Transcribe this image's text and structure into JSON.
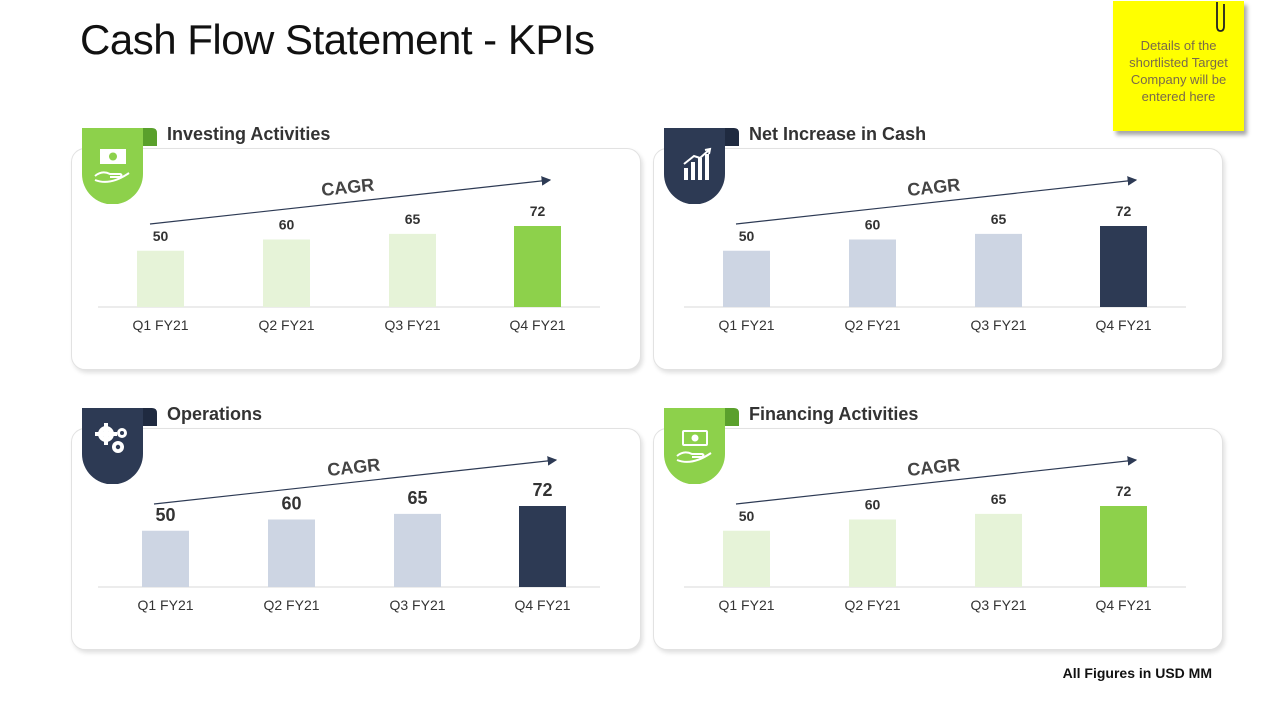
{
  "title": "Cash Flow Statement - KPIs",
  "sticky_note": "Details of the shortlisted Target Company will be entered here",
  "footer": "All Figures in USD MM",
  "colors": {
    "green": "#8dd14b",
    "green_light": "#e6f3d8",
    "navy": "#2d3a54",
    "navy_light": "#cdd5e3",
    "sticky": "#ffff00"
  },
  "chart_data": [
    {
      "type": "bar",
      "title": "Investing Activities",
      "icon": "money-hand-icon",
      "theme": "green",
      "annotation": "CAGR",
      "categories": [
        "Q1 FY21",
        "Q2 FY21",
        "Q3 FY21",
        "Q4 FY21"
      ],
      "values": [
        50,
        60,
        65,
        72
      ],
      "ylim": [
        0,
        80
      ]
    },
    {
      "type": "bar",
      "title": "Net Increase in Cash",
      "icon": "bar-growth-icon",
      "theme": "navy",
      "annotation": "CAGR",
      "categories": [
        "Q1 FY21",
        "Q2 FY21",
        "Q3 FY21",
        "Q4 FY21"
      ],
      "values": [
        50,
        60,
        65,
        72
      ],
      "ylim": [
        0,
        80
      ]
    },
    {
      "type": "bar",
      "title": "Operations",
      "icon": "gears-icon",
      "theme": "navy",
      "annotation": "CAGR",
      "categories": [
        "Q1 FY21",
        "Q2 FY21",
        "Q3 FY21",
        "Q4 FY21"
      ],
      "values": [
        50,
        60,
        65,
        72
      ],
      "ylim": [
        0,
        80
      ]
    },
    {
      "type": "bar",
      "title": "Financing Activities",
      "icon": "money-hand-icon",
      "theme": "green",
      "annotation": "CAGR",
      "categories": [
        "Q1 FY21",
        "Q2 FY21",
        "Q3 FY21",
        "Q4 FY21"
      ],
      "values": [
        50,
        60,
        65,
        72
      ],
      "ylim": [
        0,
        80
      ]
    }
  ]
}
